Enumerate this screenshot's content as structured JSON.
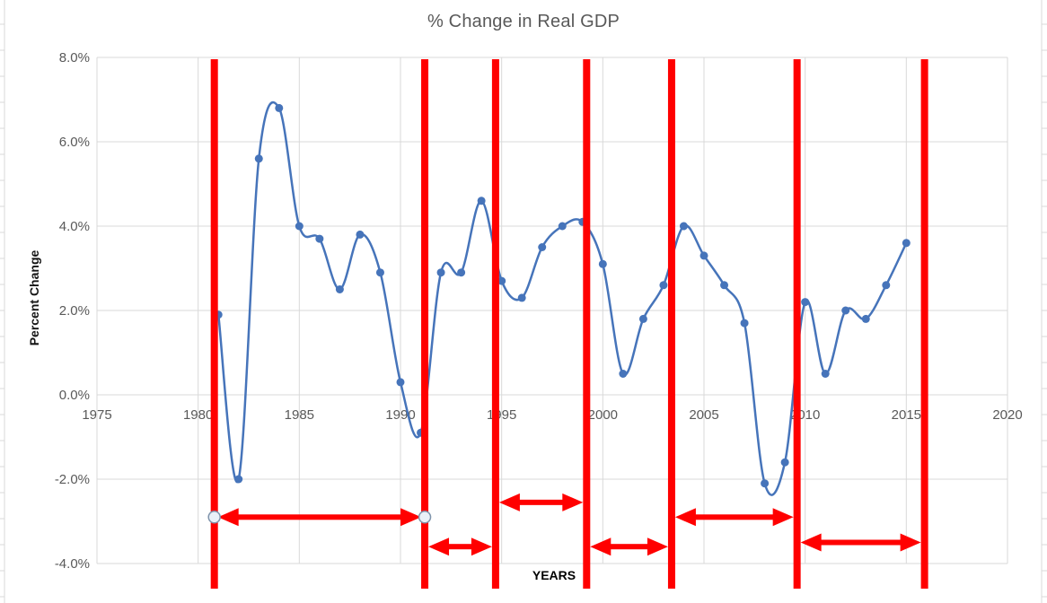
{
  "chart_data": {
    "type": "line",
    "title": "% Change in Real GDP",
    "xlabel": "YEARS",
    "ylabel": "Percent Change",
    "smooth": true,
    "markers": true,
    "grid": true,
    "legend": "none",
    "x": [
      1981,
      1982,
      1983,
      1984,
      1985,
      1986,
      1987,
      1988,
      1989,
      1990,
      1991,
      1992,
      1993,
      1994,
      1995,
      1996,
      1997,
      1998,
      1999,
      2000,
      2001,
      2002,
      2003,
      2004,
      2005,
      2006,
      2007,
      2008,
      2009,
      2010,
      2011,
      2012,
      2013,
      2014,
      2015
    ],
    "values": [
      1.9,
      -2.0,
      5.6,
      6.8,
      4.0,
      3.7,
      2.5,
      3.8,
      2.9,
      0.3,
      -0.9,
      2.9,
      2.9,
      4.6,
      2.7,
      2.3,
      3.5,
      4.0,
      4.1,
      3.1,
      0.5,
      1.8,
      2.6,
      4.0,
      3.3,
      2.6,
      1.7,
      -2.1,
      -1.6,
      2.2,
      0.5,
      2.0,
      1.8,
      2.6,
      3.6
    ],
    "xlim": [
      1975,
      2020
    ],
    "ylim": [
      -4.0,
      8.0
    ],
    "x_ticks": [
      1975,
      1980,
      1985,
      1990,
      1995,
      2000,
      2005,
      2010,
      2015,
      2020
    ],
    "x_tick_labels": [
      "1975",
      "1980",
      "1985",
      "1990",
      "1995",
      "2000",
      "2005",
      "2010",
      "2015",
      "2020"
    ],
    "y_ticks": [
      8,
      6,
      4,
      2,
      0,
      -2,
      -4
    ],
    "y_tick_labels": [
      "8.0%",
      "6.0%",
      "4.0%",
      "2.0%",
      "0.0%",
      "-2.0%",
      "-4.0%"
    ],
    "annotations": {
      "vlines_years": [
        1980.8,
        1991.2,
        1994.7,
        1999.2,
        2003.4,
        2009.6,
        2015.9
      ],
      "span_arrows": [
        {
          "from_year": 1980.8,
          "to_year": 1991.2,
          "y_value": -2.9,
          "end_handles": true
        },
        {
          "from_year": 1991.2,
          "to_year": 1994.7,
          "y_value": -3.6,
          "end_handles": false
        },
        {
          "from_year": 1994.7,
          "to_year": 1999.2,
          "y_value": -2.55,
          "end_handles": false
        },
        {
          "from_year": 1999.2,
          "to_year": 2003.4,
          "y_value": -3.6,
          "end_handles": false
        },
        {
          "from_year": 2003.4,
          "to_year": 2009.6,
          "y_value": -2.9,
          "end_handles": false
        },
        {
          "from_year": 2009.6,
          "to_year": 2015.9,
          "y_value": -3.5,
          "end_handles": false
        }
      ]
    },
    "colors": {
      "series_line": "#4674BA",
      "marker": "#4674BA",
      "annotation_red": "#FF0000",
      "gridline": "#D9D9D9",
      "worksheet_gridline": "#D9D9D9",
      "tick_label": "#595959",
      "title": "#595959",
      "handle_fill": "#EAF1F8",
      "handle_stroke": "#7F93AB"
    }
  }
}
